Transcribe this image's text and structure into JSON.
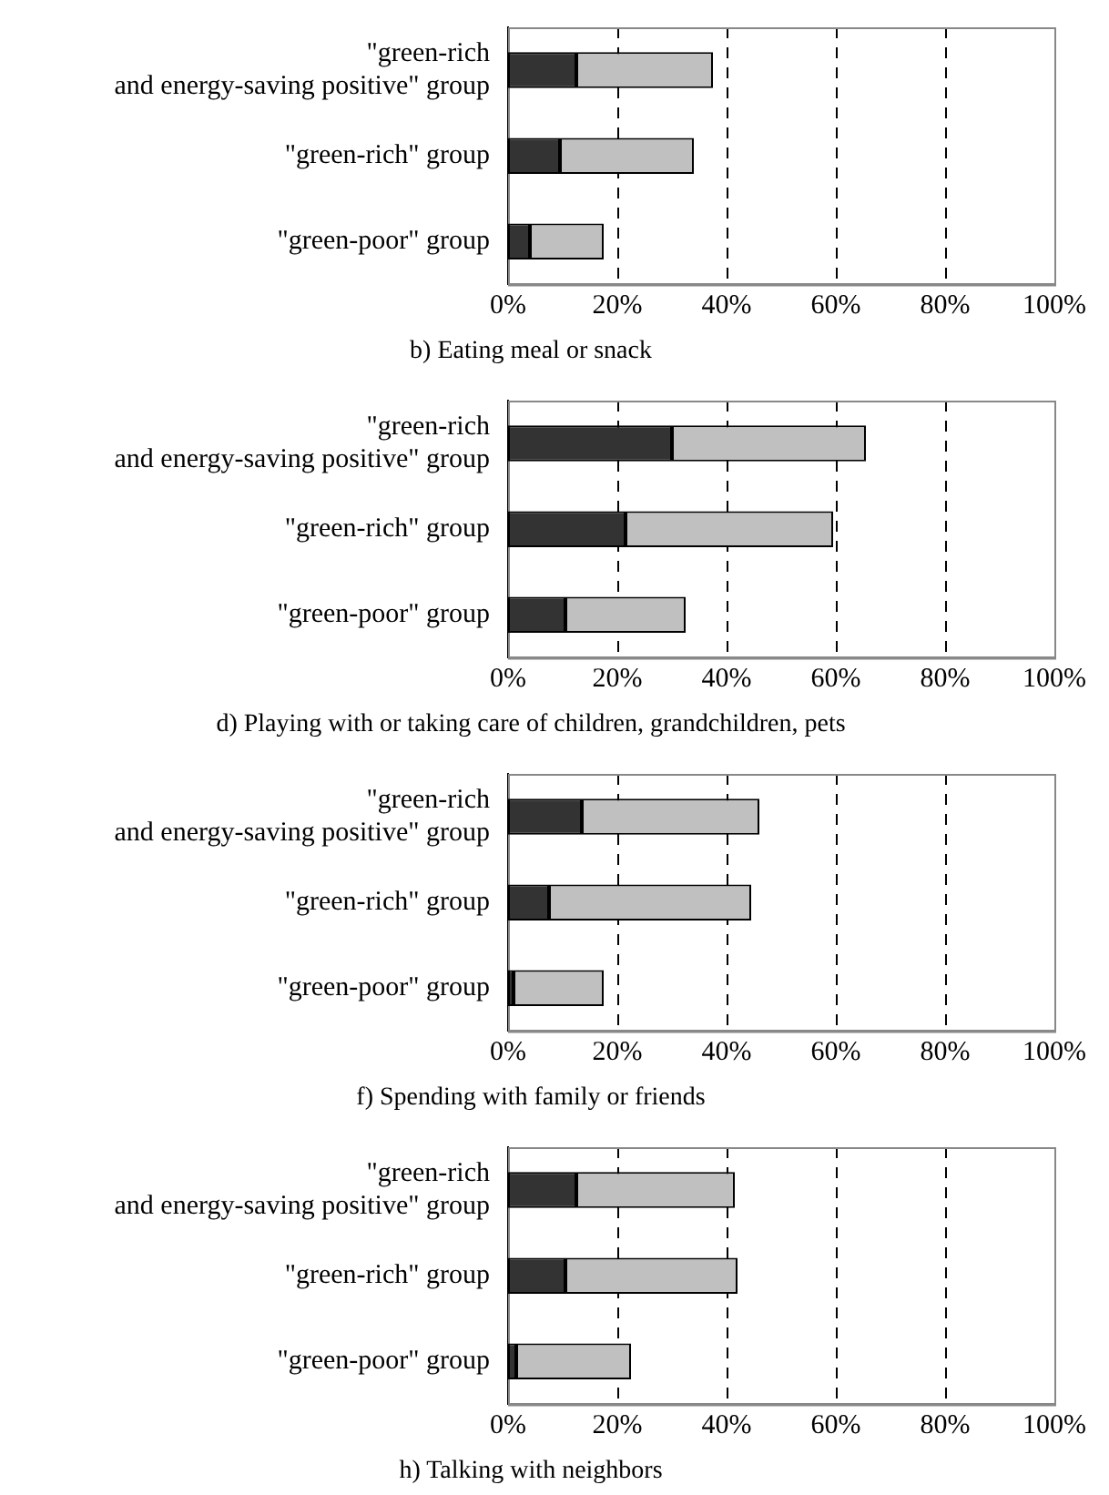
{
  "chart_data": [
    {
      "type": "bar",
      "orientation": "horizontal",
      "stacked": true,
      "title": "b) Eating meal or snack",
      "categories": [
        "\"green-rich and energy-saving positive\" group",
        "\"green-rich\" group",
        "\"green-poor\" group"
      ],
      "series": [
        {
          "color": "#333333",
          "values": [
            12.5,
            9.5,
            4
          ]
        },
        {
          "color": "#c0c0c0",
          "values": [
            25,
            24.5,
            13.5
          ]
        }
      ],
      "xlim": [
        0,
        100
      ],
      "xticks": [
        {
          "value": 0,
          "label": "0%"
        },
        {
          "value": 20,
          "label": "20%"
        },
        {
          "value": 40,
          "label": "40%"
        },
        {
          "value": 60,
          "label": "60%"
        },
        {
          "value": 80,
          "label": "80%"
        },
        {
          "value": 100,
          "label": "100%"
        }
      ],
      "grid": "x"
    },
    {
      "type": "bar",
      "orientation": "horizontal",
      "stacked": true,
      "title": "d) Playing with or taking care of children, grandchildren, pets",
      "categories": [
        "\"green-rich and energy-saving positive\" group",
        "\"green-rich\" group",
        "\"green-poor\" group"
      ],
      "series": [
        {
          "color": "#333333",
          "values": [
            30,
            21.5,
            10.5
          ]
        },
        {
          "color": "#c0c0c0",
          "values": [
            35.5,
            38,
            22
          ]
        }
      ],
      "xlim": [
        0,
        100
      ],
      "xticks": [
        {
          "value": 0,
          "label": "0%"
        },
        {
          "value": 20,
          "label": "20%"
        },
        {
          "value": 40,
          "label": "40%"
        },
        {
          "value": 60,
          "label": "60%"
        },
        {
          "value": 80,
          "label": "80%"
        },
        {
          "value": 100,
          "label": "100%"
        }
      ],
      "grid": "x"
    },
    {
      "type": "bar",
      "orientation": "horizontal",
      "stacked": true,
      "title": "f) Spending with family or friends",
      "categories": [
        "\"green-rich and energy-saving positive\" group",
        "\"green-rich\" group",
        "\"green-poor\" group"
      ],
      "series": [
        {
          "color": "#333333",
          "values": [
            13.5,
            7.5,
            1
          ]
        },
        {
          "color": "#c0c0c0",
          "values": [
            32.5,
            37,
            16.5
          ]
        }
      ],
      "xlim": [
        0,
        100
      ],
      "xticks": [
        {
          "value": 0,
          "label": "0%"
        },
        {
          "value": 20,
          "label": "20%"
        },
        {
          "value": 40,
          "label": "40%"
        },
        {
          "value": 60,
          "label": "60%"
        },
        {
          "value": 80,
          "label": "80%"
        },
        {
          "value": 100,
          "label": "100%"
        }
      ],
      "grid": "x"
    },
    {
      "type": "bar",
      "orientation": "horizontal",
      "stacked": true,
      "title": "h) Talking with neighbors",
      "categories": [
        "\"green-rich and energy-saving positive\" group",
        "\"green-rich\" group",
        "\"green-poor\" group"
      ],
      "series": [
        {
          "color": "#333333",
          "values": [
            12.5,
            10.5,
            1.5
          ]
        },
        {
          "color": "#c0c0c0",
          "values": [
            29,
            31.5,
            21
          ]
        }
      ],
      "xlim": [
        0,
        100
      ],
      "xticks": [
        {
          "value": 0,
          "label": "0%"
        },
        {
          "value": 20,
          "label": "20%"
        },
        {
          "value": 40,
          "label": "40%"
        },
        {
          "value": 60,
          "label": "60%"
        },
        {
          "value": 80,
          "label": "80%"
        },
        {
          "value": 100,
          "label": "100%"
        }
      ],
      "grid": "x"
    }
  ]
}
